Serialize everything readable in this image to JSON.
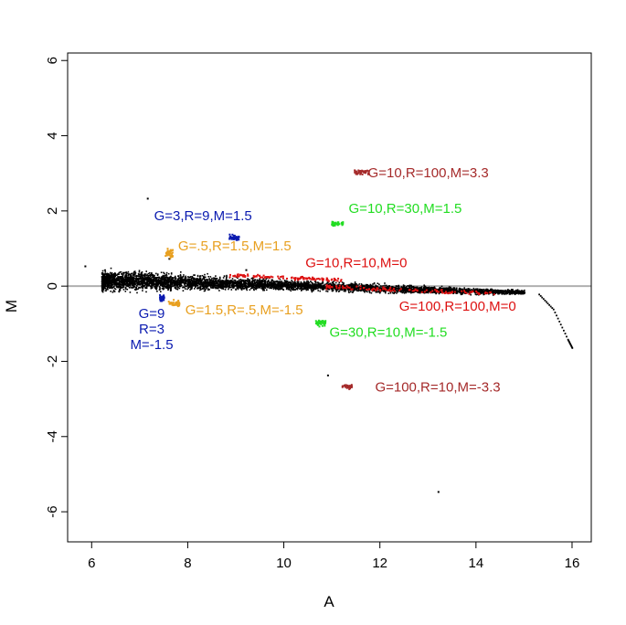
{
  "chart_data": {
    "type": "scatter",
    "xlabel": "A",
    "ylabel": "M",
    "xlim": [
      5.5,
      16.4
    ],
    "ylim": [
      -6.8,
      6.2
    ],
    "x_ticks": [
      6,
      8,
      10,
      12,
      14,
      16
    ],
    "y_ticks": [
      -6,
      -4,
      -2,
      0,
      2,
      4,
      6
    ],
    "x_tick_labels": [
      "6",
      "8",
      "10",
      "12",
      "14",
      "16"
    ],
    "y_tick_labels": [
      "-6",
      "-4",
      "-2",
      "0",
      "2",
      "4",
      "6"
    ],
    "reference_line": {
      "y": 0,
      "color": "#b0b0b0"
    },
    "bulk_cloud": {
      "color": "#000000",
      "profile": [
        {
          "a": 6.2,
          "m_center": 0.15,
          "spread": 0.22
        },
        {
          "a": 7.0,
          "m_center": 0.15,
          "spread": 0.2
        },
        {
          "a": 8.0,
          "m_center": 0.12,
          "spread": 0.16
        },
        {
          "a": 9.0,
          "m_center": 0.08,
          "spread": 0.13
        },
        {
          "a": 10.0,
          "m_center": 0.05,
          "spread": 0.11
        },
        {
          "a": 11.0,
          "m_center": 0.0,
          "spread": 0.1
        },
        {
          "a": 12.0,
          "m_center": -0.05,
          "spread": 0.09
        },
        {
          "a": 13.0,
          "m_center": -0.08,
          "spread": 0.08
        },
        {
          "a": 14.0,
          "m_center": -0.12,
          "spread": 0.07
        },
        {
          "a": 15.0,
          "m_center": -0.15,
          "spread": 0.05
        }
      ],
      "tail": [
        {
          "a": 15.3,
          "m": -0.2
        },
        {
          "a": 15.6,
          "m": -0.6
        },
        {
          "a": 15.9,
          "m": -1.4
        },
        {
          "a": 16.0,
          "m": -1.65
        }
      ],
      "outliers": [
        {
          "a": 5.85,
          "m": 0.55
        },
        {
          "a": 7.15,
          "m": 2.35
        },
        {
          "a": 10.9,
          "m": -2.35
        },
        {
          "a": 13.2,
          "m": -5.45
        },
        {
          "a": 7.6,
          "m": 0.75
        },
        {
          "a": 9.2,
          "m": 0.45
        }
      ]
    },
    "series": [
      {
        "name": "G=10,R=100,M=3.3",
        "color": "#a52a2a",
        "a": 11.6,
        "m": 3.05,
        "spread_a": 0.15,
        "spread_m": 0.06,
        "label_a": 11.75,
        "label_m": 2.9
      },
      {
        "name": "G=10,R=30,M=1.5",
        "color": "#22dd22",
        "a": 11.1,
        "m": 1.68,
        "spread_a": 0.12,
        "spread_m": 0.06,
        "label_a": 11.35,
        "label_m": 1.95
      },
      {
        "name": "G=3,R=9,M=1.5",
        "color": "#0a1ab0",
        "a": 8.95,
        "m": 1.32,
        "spread_a": 0.1,
        "spread_m": 0.08,
        "label_a": 7.3,
        "label_m": 1.75
      },
      {
        "name": "G=.5,R=1.5,M=1.5",
        "color": "#e8a020",
        "a": 7.6,
        "m": 0.9,
        "spread_a": 0.08,
        "spread_m": 0.12,
        "label_a": 7.8,
        "label_m": 0.95
      },
      {
        "name": "G=10,R=10,M=0",
        "color": "#dd1111",
        "a": 10.0,
        "m": 0.25,
        "spread_a": 1.2,
        "spread_m": 0.04,
        "label_a": 10.45,
        "label_m": 0.5
      },
      {
        "name": "G=100,R=100,M=0",
        "color": "#dd1111",
        "a": 12.6,
        "m": -0.08,
        "spread_a": 1.8,
        "spread_m": 0.05,
        "label_a": 12.4,
        "label_m": -0.65
      },
      {
        "name": "G=30,R=10,M=-1.5",
        "color": "#22dd22",
        "a": 10.75,
        "m": -0.95,
        "spread_a": 0.1,
        "spread_m": 0.07,
        "label_a": 10.95,
        "label_m": -1.35
      },
      {
        "name": "G=1.5,R=.5,M=-1.5",
        "color": "#e8a020",
        "a": 7.7,
        "m": -0.45,
        "spread_a": 0.12,
        "spread_m": 0.08,
        "label_a": 7.95,
        "label_m": -0.75
      },
      {
        "name": "G=100,R=10,M=-3.3",
        "color": "#a52a2a",
        "a": 11.3,
        "m": -2.65,
        "spread_a": 0.1,
        "spread_m": 0.05,
        "label_a": 11.9,
        "label_m": -2.8
      },
      {
        "name": "G=9,R=3,M=-1.5",
        "color": "#0a1ab0",
        "a": 7.45,
        "m": -0.3,
        "spread_a": 0.05,
        "spread_m": 0.08,
        "label_lines": [
          "G=9",
          "R=3",
          "M=-1.5"
        ],
        "label_a": 7.25,
        "label_m": -0.85
      }
    ]
  }
}
